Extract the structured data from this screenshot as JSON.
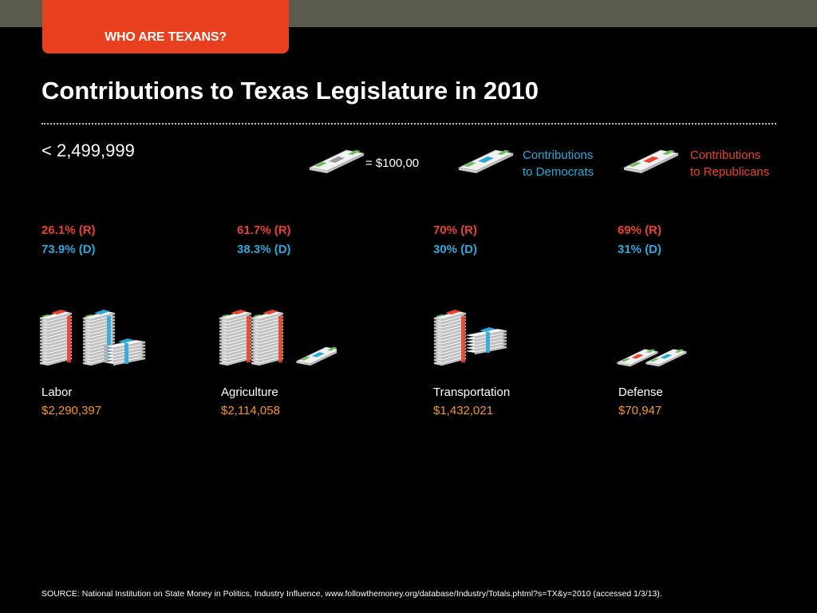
{
  "header": {
    "tab_label": "WHO ARE TEXANS?"
  },
  "title": "Contributions to Texas Legislature in 2010",
  "range_label": "< 2,499,999",
  "legend": {
    "unit_label": "= $100,00",
    "democrats_line1": "Contributions",
    "democrats_line2": "to Democrats",
    "republicans_line1": "Contributions",
    "republicans_line2": "to Republicans"
  },
  "colors": {
    "republican": "#e8442c",
    "democrat": "#2aa8d8",
    "amount": "#f29a1d",
    "tab": "#e8401f",
    "bill_green": "#6fbf5a"
  },
  "industries": [
    {
      "name": "Labor",
      "amount": "$2,290,397",
      "rep": "26.1% (R)",
      "dem": "73.9% (D)"
    },
    {
      "name": "Agriculture",
      "amount": "$2,114,058",
      "rep": "61.7% (R)",
      "dem": "38.3% (D)"
    },
    {
      "name": "Transportation",
      "amount": "$1,432,021",
      "rep": "70% (R)",
      "dem": "30% (D)"
    },
    {
      "name": "Defense",
      "amount": "$70,947",
      "rep": "69% (R)",
      "dem": "31% (D)"
    }
  ],
  "source": "SOURCE: National Institution on State Money in Politics, Industry Influence, www.followthemoney.org/database/Industry/Totals.phtml?s=TX&y=2010 (accessed 1/3/13)."
}
